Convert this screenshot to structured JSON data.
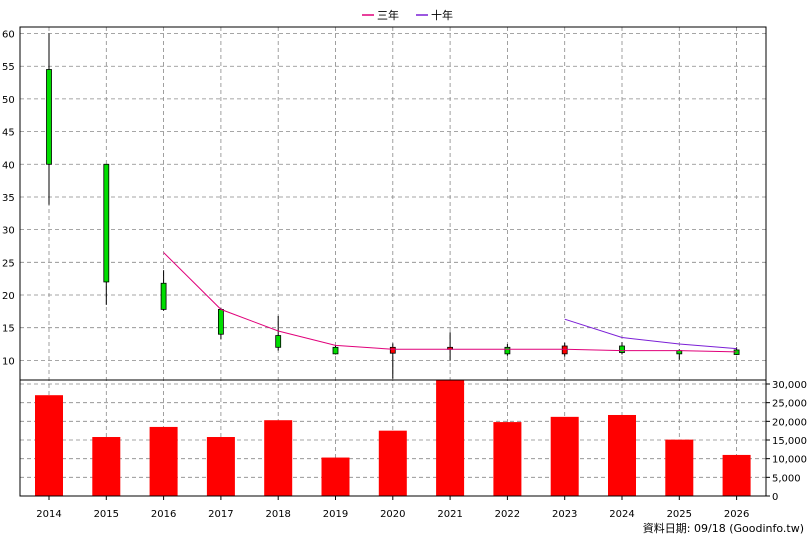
{
  "chart_data": {
    "type": "candlestick-volume",
    "legend": [
      {
        "name": "三年",
        "color": "#e0007a"
      },
      {
        "name": "十年",
        "color": "#7b1fd6"
      }
    ],
    "years": [
      "2014",
      "2015",
      "2016",
      "2017",
      "2018",
      "2019",
      "2020",
      "2021",
      "2022",
      "2023",
      "2024",
      "2025",
      "2026"
    ],
    "candles": [
      {
        "open": 54.5,
        "high": 60.0,
        "low": 33.8,
        "close": 40.0,
        "color": "#00dd00"
      },
      {
        "open": 40.0,
        "high": 40.0,
        "low": 18.5,
        "close": 22.0,
        "color": "#00dd00"
      },
      {
        "open": 21.8,
        "high": 23.8,
        "low": 17.6,
        "close": 17.8,
        "color": "#00dd00"
      },
      {
        "open": 17.8,
        "high": 18.0,
        "low": 13.2,
        "close": 14.0,
        "color": "#00dd00"
      },
      {
        "open": 13.8,
        "high": 16.8,
        "low": 11.5,
        "close": 12.0,
        "color": "#00dd00"
      },
      {
        "open": 12.0,
        "high": 12.3,
        "low": 10.9,
        "close": 11.0,
        "color": "#00dd00"
      },
      {
        "open": 11.1,
        "high": 12.6,
        "low": 7.2,
        "close": 12.0,
        "color": "#ff0000"
      },
      {
        "open": 12.0,
        "high": 14.3,
        "low": 10.0,
        "close": 12.0,
        "color": "#ff0000"
      },
      {
        "open": 12.0,
        "high": 12.5,
        "low": 10.7,
        "close": 11.0,
        "color": "#00dd00"
      },
      {
        "open": 11.0,
        "high": 12.7,
        "low": 10.6,
        "close": 12.2,
        "color": "#ff0000"
      },
      {
        "open": 12.2,
        "high": 12.8,
        "low": 10.9,
        "close": 11.2,
        "color": "#00dd00"
      },
      {
        "open": 11.5,
        "high": 11.7,
        "low": 10.1,
        "close": 11.0,
        "color": "#00dd00"
      },
      {
        "open": 11.6,
        "high": 12.0,
        "low": 10.8,
        "close": 10.9,
        "color": "#00dd00"
      }
    ],
    "three_year_line": [
      null,
      null,
      26.5,
      17.8,
      14.5,
      12.3,
      11.7,
      11.7,
      11.7,
      11.7,
      11.5,
      11.5,
      11.3
    ],
    "ten_year_line": [
      null,
      null,
      null,
      null,
      null,
      null,
      null,
      null,
      null,
      16.3,
      13.5,
      12.5,
      11.8
    ],
    "volume": [
      27000,
      15800,
      18500,
      15800,
      20300,
      10300,
      17500,
      31000,
      19800,
      21200,
      21700,
      15100,
      11000
    ],
    "volume_color": "#ff0000",
    "price_ylim": [
      7,
      61
    ],
    "price_ticks": [
      "10",
      "15",
      "20",
      "25",
      "30",
      "35",
      "40",
      "45",
      "50",
      "55",
      "60"
    ],
    "volume_ylim": [
      0,
      30000
    ],
    "volume_ticks": [
      "0",
      "5,000",
      "10,000",
      "15,000",
      "20,000",
      "25,000",
      "30,000"
    ],
    "grid": true
  },
  "footer": {
    "source_text": "資料日期: 09/18  (Goodinfo.tw)"
  }
}
